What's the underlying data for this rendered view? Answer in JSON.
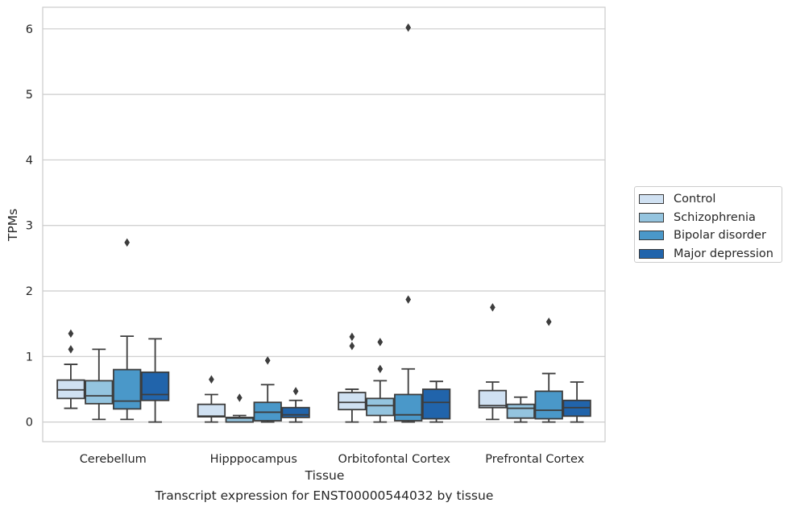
{
  "caption": "Transcript expression for ENST00000544032 by tissue",
  "chart_data": {
    "type": "box",
    "xlabel": "Tissue",
    "ylabel": "TPMs",
    "ylim": [
      -0.3,
      6.33
    ],
    "yticks": [
      0,
      1,
      2,
      3,
      4,
      5,
      6
    ],
    "grid": "horizontal",
    "legend_position": "right",
    "categories": [
      "Cerebellum",
      "Hipppocampus",
      "Orbitofontal Cortex",
      "Prefrontal Cortex"
    ],
    "series": [
      {
        "name": "Control",
        "color": "#d0e1f2",
        "boxes": [
          {
            "whislo": 0.21,
            "q1": 0.36,
            "med": 0.49,
            "q3": 0.64,
            "whishi": 0.88,
            "fliers": [
              1.35,
              1.11
            ]
          },
          {
            "whislo": 0.0,
            "q1": 0.08,
            "med": 0.09,
            "q3": 0.27,
            "whishi": 0.42,
            "fliers": [
              0.65
            ]
          },
          {
            "whislo": 0.0,
            "q1": 0.19,
            "med": 0.3,
            "q3": 0.45,
            "whishi": 0.5,
            "fliers": [
              1.3,
              1.16
            ]
          },
          {
            "whislo": 0.04,
            "q1": 0.22,
            "med": 0.25,
            "q3": 0.48,
            "whishi": 0.61,
            "fliers": [
              1.75
            ]
          }
        ]
      },
      {
        "name": "Schizophrenia",
        "color": "#94c4df",
        "boxes": [
          {
            "whislo": 0.04,
            "q1": 0.28,
            "med": 0.4,
            "q3": 0.63,
            "whishi": 1.11,
            "fliers": []
          },
          {
            "whislo": 0.0,
            "q1": 0.0,
            "med": 0.06,
            "q3": 0.07,
            "whishi": 0.1,
            "fliers": [
              0.37
            ]
          },
          {
            "whislo": 0.0,
            "q1": 0.1,
            "med": 0.25,
            "q3": 0.36,
            "whishi": 0.63,
            "fliers": [
              1.22,
              0.81
            ]
          },
          {
            "whislo": 0.0,
            "q1": 0.06,
            "med": 0.21,
            "q3": 0.27,
            "whishi": 0.38,
            "fliers": []
          }
        ]
      },
      {
        "name": "Bipolar disorder",
        "color": "#4a98c9",
        "boxes": [
          {
            "whislo": 0.04,
            "q1": 0.2,
            "med": 0.32,
            "q3": 0.8,
            "whishi": 1.31,
            "fliers": [
              2.74
            ]
          },
          {
            "whislo": 0.0,
            "q1": 0.02,
            "med": 0.15,
            "q3": 0.3,
            "whishi": 0.57,
            "fliers": [
              0.94
            ]
          },
          {
            "whislo": 0.0,
            "q1": 0.02,
            "med": 0.11,
            "q3": 0.42,
            "whishi": 0.81,
            "fliers": [
              6.02,
              1.87
            ]
          },
          {
            "whislo": 0.0,
            "q1": 0.05,
            "med": 0.18,
            "q3": 0.47,
            "whishi": 0.74,
            "fliers": [
              1.53
            ]
          }
        ]
      },
      {
        "name": "Major depression",
        "color": "#2164ab",
        "boxes": [
          {
            "whislo": 0.0,
            "q1": 0.33,
            "med": 0.42,
            "q3": 0.76,
            "whishi": 1.27,
            "fliers": []
          },
          {
            "whislo": 0.0,
            "q1": 0.07,
            "med": 0.11,
            "q3": 0.22,
            "whishi": 0.33,
            "fliers": [
              0.47
            ]
          },
          {
            "whislo": 0.0,
            "q1": 0.05,
            "med": 0.3,
            "q3": 0.5,
            "whishi": 0.62,
            "fliers": []
          },
          {
            "whislo": 0.0,
            "q1": 0.09,
            "med": 0.22,
            "q3": 0.33,
            "whishi": 0.61,
            "fliers": []
          }
        ]
      }
    ]
  }
}
